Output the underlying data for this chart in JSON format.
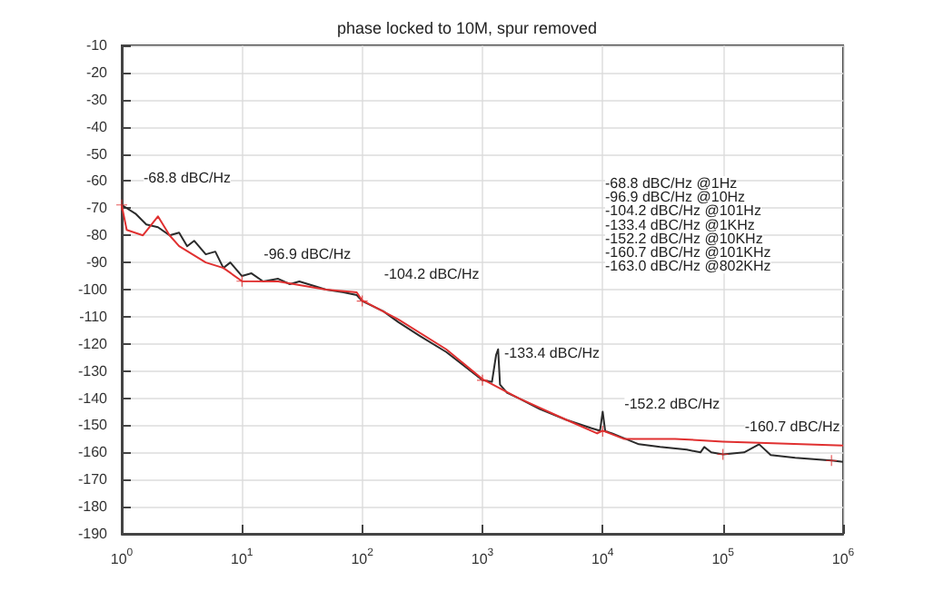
{
  "chart_data": {
    "type": "line",
    "title": "phase locked to 10M, spur removed",
    "log": "x",
    "grid": true,
    "xlim": [
      1,
      1000000
    ],
    "xticks": [
      {
        "value": 1,
        "label": "10$^{0}$"
      },
      {
        "value": 10,
        "label": "10$^{1}$"
      },
      {
        "value": 100,
        "label": "10$^{2}$"
      },
      {
        "value": 1000,
        "label": "10$^{3}$"
      },
      {
        "value": 10000,
        "label": "10$^{4}$"
      },
      {
        "value": 100000,
        "label": "10$^{5}$"
      },
      {
        "value": 1000000,
        "label": "10$^{6}$"
      }
    ],
    "ylim": [
      -190,
      -10
    ],
    "yticks": [
      -190,
      -180,
      -170,
      -160,
      -150,
      -140,
      -130,
      -120,
      -110,
      -100,
      -90,
      -80,
      -70,
      -60,
      -50,
      -40,
      -30,
      -20,
      -10
    ],
    "series": [
      {
        "color": "#2b2b2b",
        "x": [
          1,
          1.3,
          1.6,
          2,
          2.5,
          3,
          3.5,
          4,
          5,
          6,
          7,
          8,
          10,
          12,
          15,
          20,
          25,
          30,
          50,
          70,
          90,
          100,
          150,
          200,
          300,
          500,
          700,
          1000,
          1200,
          1300,
          1350,
          1400,
          1600,
          2000,
          3000,
          5000,
          8000,
          9500,
          10000,
          10500,
          12000,
          20000,
          30000,
          50000,
          65000,
          70000,
          80000,
          100000,
          150000,
          200000,
          250000,
          400000,
          800000,
          1000000
        ],
        "values": [
          -68.8,
          -72,
          -76,
          -77,
          -80,
          -79,
          -84,
          -82,
          -87,
          -86,
          -92,
          -90,
          -95,
          -94,
          -97,
          -96,
          -98,
          -97,
          -100,
          -101,
          -102,
          -104.2,
          -108,
          -112,
          -117,
          -123,
          -128,
          -133.4,
          -134,
          -124,
          -122,
          -135,
          -138,
          -140,
          -144,
          -148,
          -151,
          -152,
          -145,
          -152.2,
          -153,
          -157,
          -158,
          -159,
          -160,
          -158,
          -160,
          -160.7,
          -160,
          -157,
          -161,
          -162,
          -163,
          -163.5
        ]
      },
      {
        "color": "#e03030",
        "x": [
          1,
          1.1,
          1.5,
          2,
          2.5,
          3,
          5,
          7,
          10,
          20,
          50,
          90,
          100,
          200,
          500,
          1000,
          2000,
          5000,
          9000,
          10000,
          15000,
          20000,
          40000,
          100000,
          200000,
          1000000
        ],
        "values": [
          -69,
          -78,
          -80,
          -73,
          -80,
          -84,
          -90,
          -92,
          -96.9,
          -97,
          -100,
          -101,
          -104,
          -111,
          -122,
          -133,
          -140,
          -148,
          -153,
          -152,
          -155,
          -155,
          -155,
          -156,
          -156.5,
          -157.5
        ]
      },
      {
        "type": "scatter",
        "marker": "cross",
        "color": "#e03030",
        "x": [
          1,
          10,
          100,
          1000,
          10000,
          100000,
          800000
        ],
        "values": [
          -68.8,
          -96.9,
          -104.2,
          -133.4,
          -152.2,
          -160.7,
          -163.0
        ]
      }
    ],
    "annotations": [
      {
        "text": "-68.8 dBC/Hz",
        "x": 1,
        "y": -68.8
      },
      {
        "text": "-96.9 dBC/Hz",
        "x": 10,
        "y": -96.9
      },
      {
        "text": "-104.2 dBC/Hz",
        "x": 100,
        "y": -104.2
      },
      {
        "text": "-133.4 dBC/Hz",
        "x": 1000,
        "y": -133.4
      },
      {
        "text": "-152.2 dBC/Hz",
        "x": 10000,
        "y": -152.2
      },
      {
        "text": "-160.7 dBC/Hz",
        "x": 100000,
        "y": -160.7
      },
      "-68.8 dBC/Hz @1Hz",
      "-96.9 dBC/Hz @10Hz",
      "-104.2 dBC/Hz @101Hz",
      "-133.4 dBC/Hz @1KHz",
      "-152.2 dBC/Hz @10KHz",
      "-160.7 dBC/Hz @101KHz",
      "-163.0 dBC/Hz @802KHz"
    ]
  }
}
